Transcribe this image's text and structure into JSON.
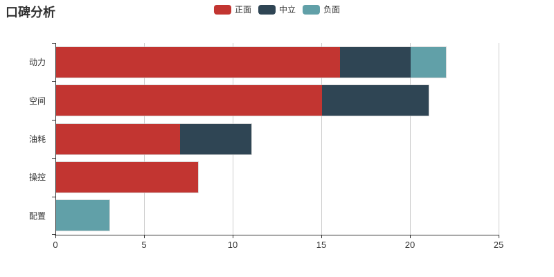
{
  "chart_data": {
    "type": "bar",
    "orientation": "horizontal",
    "stacked": true,
    "title": "口碑分析",
    "categories": [
      "动力",
      "空间",
      "油耗",
      "操控",
      "配置"
    ],
    "series": [
      {
        "name": "正面",
        "color": "#c23531",
        "values": [
          16,
          15,
          7,
          8,
          0
        ]
      },
      {
        "name": "中立",
        "color": "#2f4554",
        "values": [
          4,
          6,
          4,
          0,
          0
        ]
      },
      {
        "name": "负面",
        "color": "#61a0a8",
        "values": [
          2,
          0,
          0,
          0,
          3
        ]
      }
    ],
    "legend": [
      "正面",
      "中立",
      "负面"
    ],
    "legend_position": "top-center",
    "xlim": [
      0,
      25
    ],
    "x_ticks": [
      0,
      5,
      10,
      15,
      20,
      25
    ],
    "grid": true,
    "xlabel": "",
    "ylabel": ""
  },
  "style": {
    "background": "#ffffff",
    "axis_color": "#333333",
    "grid_color": "#cccccc",
    "text_color": "#333333",
    "title_color": "#333333"
  }
}
